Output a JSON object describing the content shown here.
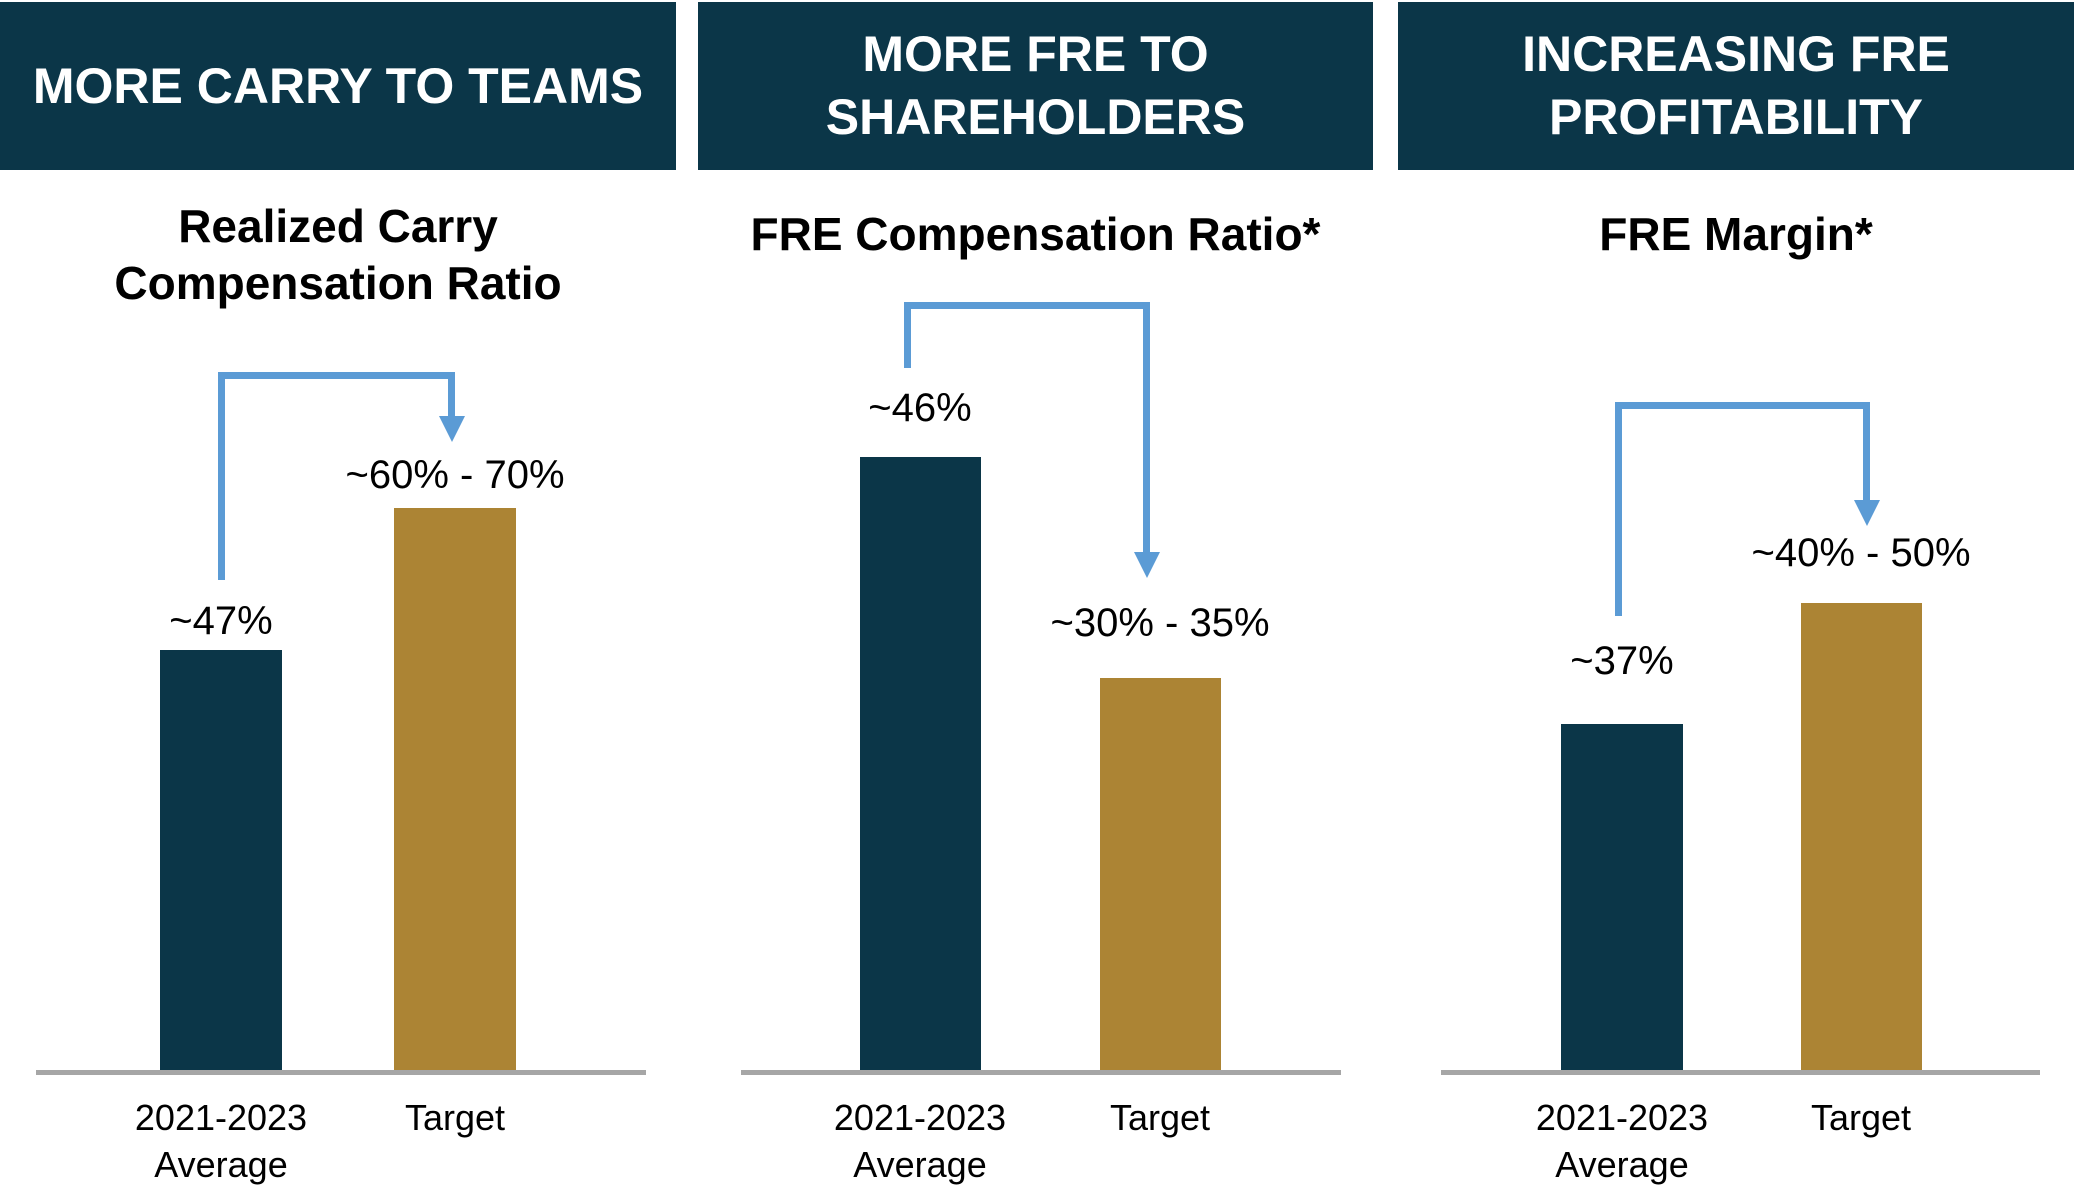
{
  "colors": {
    "header_background": "#0b3648",
    "average_bar": "#0b3648",
    "target_bar": "#ac8434",
    "arrow_blue": "#5b9bd5",
    "baseline_gray": "#a6a6a6",
    "header_text": "#ffffff",
    "body_text": "#000000"
  },
  "panels": [
    {
      "header_lines": [
        "MORE CARRY TO TEAMS"
      ],
      "subtitle_lines": [
        "Realized Carry",
        "Compensation Ratio"
      ],
      "values": {
        "average": "~47%",
        "target": "~60% - 70%"
      },
      "categories": {
        "average_line1": "2021-2023",
        "average_line2": "Average",
        "target": "Target"
      },
      "arrow_direction": "up"
    },
    {
      "header_lines": [
        "MORE FRE TO",
        "SHAREHOLDERS"
      ],
      "subtitle_lines": [
        "FRE Compensation Ratio*"
      ],
      "values": {
        "average": "~46%",
        "target": "~30% - 35%"
      },
      "categories": {
        "average_line1": "2021-2023",
        "average_line2": "Average",
        "target": "Target"
      },
      "arrow_direction": "down"
    },
    {
      "header_lines": [
        "INCREASING FRE",
        "PROFITABILITY"
      ],
      "subtitle_lines": [
        "FRE Margin*"
      ],
      "values": {
        "average": "~37%",
        "target": "~40% - 50%"
      },
      "categories": {
        "average_line1": "2021-2023",
        "average_line2": "Average",
        "target": "Target"
      },
      "arrow_direction": "up"
    }
  ],
  "chart_data": [
    {
      "type": "bar",
      "panel_header": "MORE CARRY TO TEAMS",
      "title": "Realized Carry Compensation Ratio",
      "categories": [
        "2021-2023 Average",
        "Target"
      ],
      "values": [
        47,
        65
      ],
      "value_labels": [
        "~47%",
        "~60% - 70%"
      ],
      "target_range": [
        60,
        70
      ],
      "bar_colors": [
        "#0b3648",
        "#ac8434"
      ],
      "annotation": "elbow arrow from 2021-2023 Average up to Target",
      "ylabel": "",
      "xlabel": "",
      "ylim": [
        0,
        100
      ],
      "grid": false,
      "legend": "none",
      "axis_ticks": "none"
    },
    {
      "type": "bar",
      "panel_header": "MORE FRE TO SHAREHOLDERS",
      "title": "FRE Compensation Ratio*",
      "categories": [
        "2021-2023 Average",
        "Target"
      ],
      "values": [
        46,
        32.5
      ],
      "value_labels": [
        "~46%",
        "~30% - 35%"
      ],
      "target_range": [
        30,
        35
      ],
      "bar_colors": [
        "#0b3648",
        "#ac8434"
      ],
      "annotation": "elbow arrow from 2021-2023 Average down to Target",
      "ylabel": "",
      "xlabel": "",
      "ylim": [
        0,
        100
      ],
      "grid": false,
      "legend": "none",
      "axis_ticks": "none"
    },
    {
      "type": "bar",
      "panel_header": "INCREASING FRE PROFITABILITY",
      "title": "FRE Margin*",
      "categories": [
        "2021-2023 Average",
        "Target"
      ],
      "values": [
        37,
        45
      ],
      "value_labels": [
        "~37%",
        "~40% - 50%"
      ],
      "target_range": [
        40,
        50
      ],
      "bar_colors": [
        "#0b3648",
        "#ac8434"
      ],
      "annotation": "elbow arrow from 2021-2023 Average up to Target",
      "ylabel": "",
      "xlabel": "",
      "ylim": [
        0,
        100
      ],
      "grid": false,
      "legend": "none",
      "axis_ticks": "none"
    }
  ]
}
